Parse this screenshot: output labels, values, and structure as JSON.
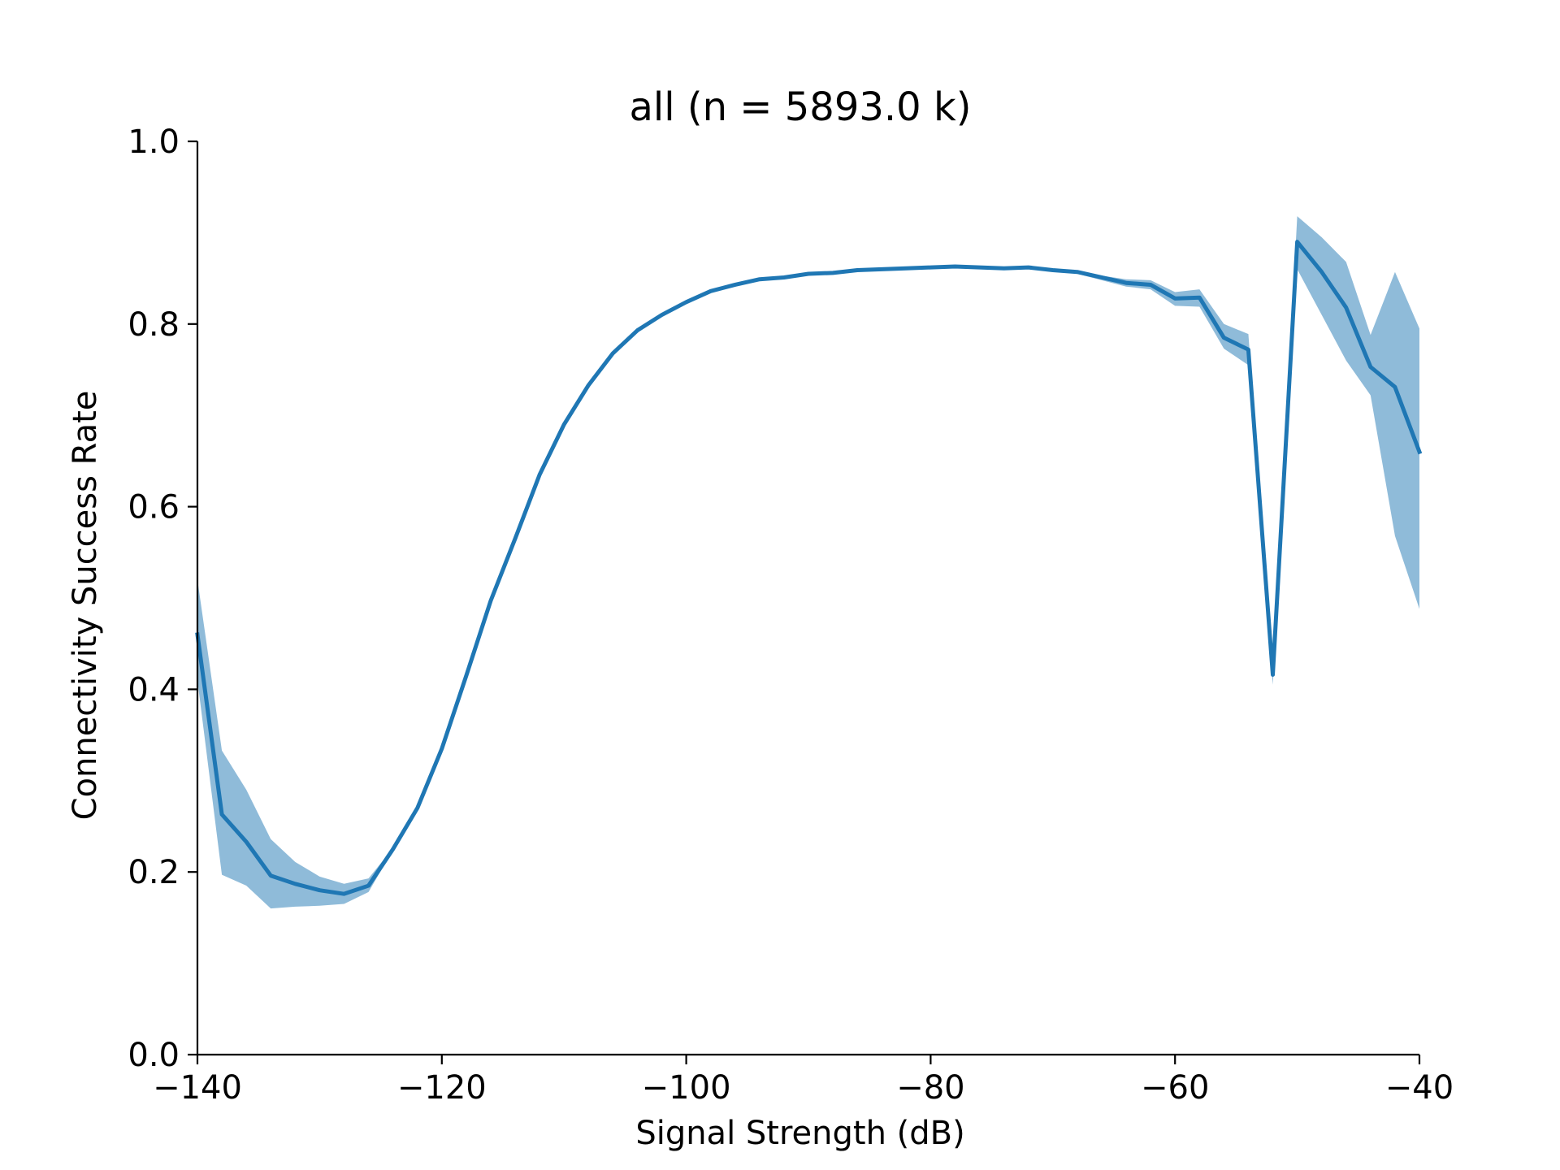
{
  "chart_data": {
    "type": "line",
    "title": "all (n = 5893.0 k)",
    "xlabel": "Signal Strength (dB)",
    "ylabel": "Connectivity Success Rate",
    "xlim": [
      -140,
      -40
    ],
    "ylim": [
      0.0,
      1.0
    ],
    "xticks": [
      -140,
      -120,
      -100,
      -80,
      -60,
      -40
    ],
    "xtick_labels": [
      "−140",
      "−120",
      "−100",
      "−80",
      "−60",
      "−40"
    ],
    "yticks": [
      0.0,
      0.2,
      0.4,
      0.6,
      0.8,
      1.0
    ],
    "ytick_labels": [
      "0.0",
      "0.2",
      "0.4",
      "0.6",
      "0.8",
      "1.0"
    ],
    "grid": false,
    "colors": {
      "line": "#1f77b4",
      "band": "#1f77b4",
      "band_opacity": 0.5
    },
    "series": [
      {
        "x": [
          -140,
          -138,
          -136,
          -134,
          -132,
          -130,
          -128,
          -126,
          -124,
          -122,
          -120,
          -118,
          -116,
          -114,
          -112,
          -110,
          -108,
          -106,
          -104,
          -102,
          -100,
          -98,
          -96,
          -94,
          -92,
          -90,
          -88,
          -86,
          -84,
          -82,
          -80,
          -78,
          -76,
          -74,
          -72,
          -70,
          -68,
          -66,
          -64,
          -62,
          -60,
          -58,
          -56,
          -54,
          -52,
          -50,
          -48,
          -46,
          -44,
          -42,
          -40
        ],
        "y": [
          0.46,
          0.263,
          0.233,
          0.196,
          0.187,
          0.18,
          0.176,
          0.185,
          0.225,
          0.27,
          0.335,
          0.415,
          0.497,
          0.565,
          0.635,
          0.69,
          0.733,
          0.768,
          0.793,
          0.81,
          0.824,
          0.836,
          0.843,
          0.849,
          0.851,
          0.855,
          0.856,
          0.859,
          0.86,
          0.861,
          0.862,
          0.863,
          0.862,
          0.861,
          0.862,
          0.859,
          0.857,
          0.851,
          0.845,
          0.843,
          0.828,
          0.829,
          0.785,
          0.772,
          0.416,
          0.89,
          0.857,
          0.818,
          0.753,
          0.731,
          0.66
        ],
        "lower": [
          0.41,
          0.197,
          0.185,
          0.16,
          0.162,
          0.163,
          0.165,
          0.178,
          0.224,
          0.269,
          0.334,
          0.414,
          0.496,
          0.564,
          0.634,
          0.689,
          0.732,
          0.767,
          0.792,
          0.809,
          0.823,
          0.835,
          0.842,
          0.848,
          0.85,
          0.854,
          0.855,
          0.858,
          0.859,
          0.86,
          0.861,
          0.862,
          0.861,
          0.86,
          0.861,
          0.858,
          0.855,
          0.848,
          0.841,
          0.838,
          0.82,
          0.819,
          0.773,
          0.755,
          0.405,
          0.86,
          0.81,
          0.76,
          0.722,
          0.568,
          0.488
        ],
        "upper": [
          0.52,
          0.333,
          0.29,
          0.236,
          0.211,
          0.195,
          0.187,
          0.193,
          0.226,
          0.271,
          0.336,
          0.416,
          0.498,
          0.566,
          0.636,
          0.691,
          0.734,
          0.769,
          0.794,
          0.811,
          0.825,
          0.837,
          0.844,
          0.85,
          0.852,
          0.856,
          0.857,
          0.86,
          0.861,
          0.862,
          0.863,
          0.864,
          0.863,
          0.862,
          0.863,
          0.86,
          0.859,
          0.853,
          0.849,
          0.848,
          0.835,
          0.838,
          0.8,
          0.789,
          0.427,
          0.918,
          0.895,
          0.868,
          0.788,
          0.857,
          0.795
        ]
      }
    ]
  }
}
